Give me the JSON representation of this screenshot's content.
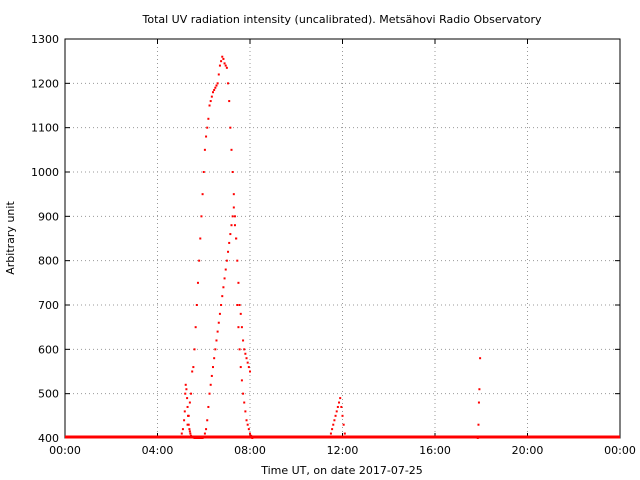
{
  "chart_data": {
    "type": "scatter",
    "title": "Total UV radiation intensity (uncalibrated). Metsähovi Radio Observatory",
    "xlabel": "Time UT, on date 2017-07-25",
    "ylabel": "Arbitrary unit",
    "xlim": [
      0,
      24
    ],
    "ylim": [
      400,
      1300
    ],
    "x_ticks": [
      {
        "value": 0,
        "label": "00:00"
      },
      {
        "value": 4,
        "label": "04:00"
      },
      {
        "value": 8,
        "label": "08:00"
      },
      {
        "value": 12,
        "label": "12:00"
      },
      {
        "value": 16,
        "label": "16:00"
      },
      {
        "value": 20,
        "label": "20:00"
      },
      {
        "value": 24,
        "label": "00:00"
      }
    ],
    "y_ticks": [
      400,
      500,
      600,
      700,
      800,
      900,
      1000,
      1100,
      1200,
      1300
    ],
    "grid": true,
    "grid_style": "dotted",
    "point_color": "#ff0000",
    "series": [
      {
        "x": [
          5.05,
          5.1,
          5.15,
          5.18,
          5.2,
          5.22,
          5.25,
          5.28,
          5.3,
          5.32,
          5.35,
          5.38,
          5.4,
          5.42,
          5.45,
          5.5,
          5.55,
          5.6,
          5.65,
          5.7,
          5.75,
          5.8,
          5.85,
          5.9,
          5.95,
          6.0,
          6.05,
          6.1,
          6.15,
          6.2,
          6.25,
          6.3,
          6.35,
          6.4,
          6.45,
          6.5,
          6.55,
          6.6,
          6.65,
          6.7,
          6.75,
          6.8,
          6.85,
          6.9,
          6.95,
          7.0,
          7.05,
          7.1,
          7.15,
          7.2,
          7.25,
          7.3,
          7.35,
          7.4,
          7.45,
          7.5,
          7.55,
          7.6,
          7.65,
          7.7,
          7.75,
          7.8,
          7.85,
          7.9,
          7.95,
          8.0,
          8.05,
          8.1,
          5.3,
          5.35,
          5.4,
          5.45,
          5.5,
          5.55,
          5.6,
          5.65,
          5.7,
          5.75,
          5.8,
          5.85,
          5.9,
          5.95,
          6.0,
          6.05,
          6.1,
          6.15,
          6.2,
          6.25,
          6.3,
          6.35,
          6.4,
          6.45,
          6.5,
          6.55,
          6.6,
          6.65,
          6.7,
          6.75,
          6.8,
          6.85,
          6.9,
          6.95,
          7.0,
          7.05,
          7.1,
          7.15,
          7.2,
          7.25,
          7.3,
          7.35,
          7.4,
          7.45,
          7.5,
          7.55,
          7.6,
          7.65,
          7.7,
          7.75,
          7.8,
          7.85,
          7.9,
          7.95,
          8.0,
          11.5,
          11.55,
          11.6,
          11.65,
          11.7,
          11.75,
          11.8,
          11.85,
          11.9,
          11.95,
          12.0,
          12.05,
          12.1,
          17.85,
          17.88,
          17.9,
          17.92,
          17.95
        ],
        "y": [
          410,
          420,
          440,
          460,
          500,
          520,
          510,
          490,
          470,
          450,
          430,
          420,
          415,
          410,
          405,
          402,
          401,
          400,
          400,
          400,
          400,
          400,
          400,
          400,
          400,
          402,
          410,
          420,
          440,
          470,
          500,
          520,
          540,
          560,
          580,
          600,
          620,
          640,
          660,
          680,
          700,
          720,
          740,
          760,
          780,
          800,
          820,
          840,
          860,
          880,
          900,
          920,
          880,
          850,
          700,
          650,
          600,
          560,
          530,
          500,
          480,
          460,
          440,
          430,
          420,
          410,
          405,
          400,
          430,
          450,
          480,
          500,
          550,
          560,
          600,
          650,
          700,
          750,
          800,
          850,
          900,
          950,
          1000,
          1050,
          1080,
          1100,
          1120,
          1150,
          1160,
          1170,
          1180,
          1185,
          1190,
          1195,
          1200,
          1220,
          1240,
          1250,
          1260,
          1255,
          1245,
          1240,
          1235,
          1200,
          1160,
          1100,
          1050,
          1000,
          950,
          900,
          850,
          800,
          750,
          700,
          680,
          650,
          620,
          600,
          590,
          580,
          570,
          560,
          550,
          410,
          420,
          430,
          440,
          450,
          460,
          470,
          480,
          490,
          470,
          450,
          430,
          410,
          400,
          430,
          480,
          510,
          580
        ]
      }
    ],
    "baseline": {
      "y": 400,
      "x_range": [
        0,
        24
      ]
    }
  }
}
